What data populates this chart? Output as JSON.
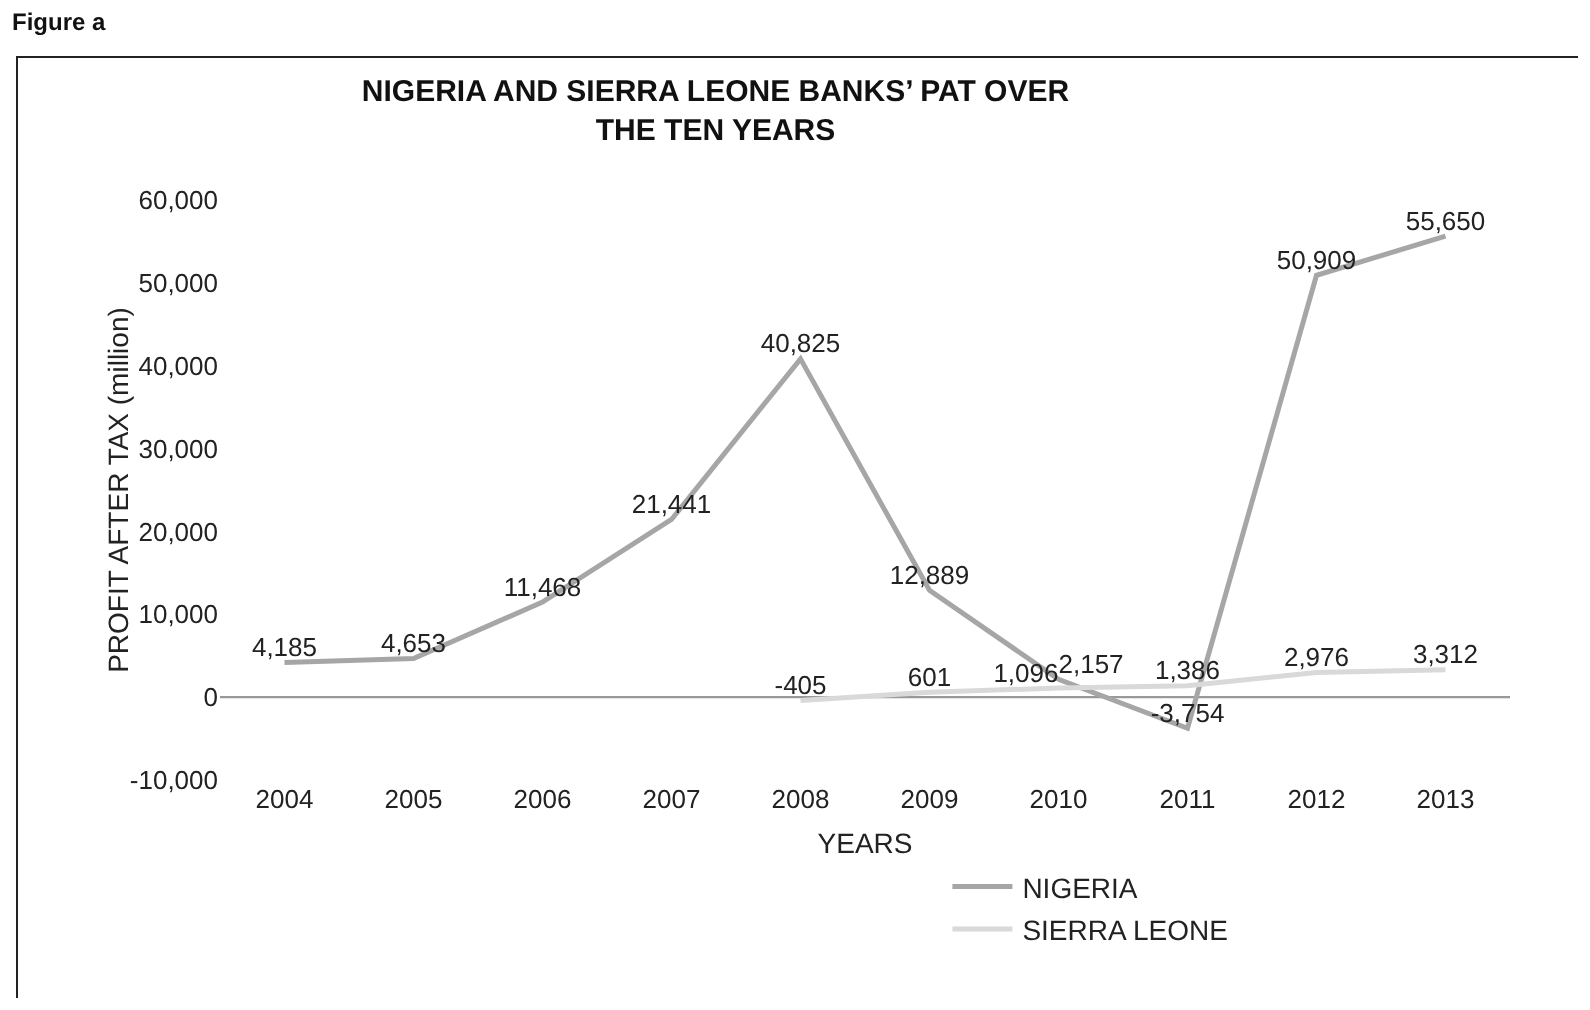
{
  "chart_data": {
    "type": "line",
    "title": "NIGERIA AND SIERRA LEONE BANKS’ PAT OVER\nTHE TEN YEARS",
    "xlabel": "YEARS",
    "ylabel": "PROFIT AFTER TAX (million)",
    "annotations": [
      "Figure a"
    ],
    "categories": [
      "2004",
      "2005",
      "2006",
      "2007",
      "2008",
      "2009",
      "2010",
      "2011",
      "2012",
      "2013"
    ],
    "series": [
      {
        "name": "NIGERIA",
        "color": "#a6a6a6",
        "values": [
          4185,
          4653,
          11468,
          21441,
          40825,
          12889,
          2157,
          -3754,
          50909,
          55650
        ],
        "value_labels": [
          "4,185",
          "4,653",
          "11,468",
          "21,441",
          "40,825",
          "12,889",
          "2,157",
          "-3,754",
          "50,909",
          "55,650"
        ]
      },
      {
        "name": "SIERRA LEONE",
        "color": "#d9d9d9",
        "values": [
          null,
          null,
          null,
          null,
          -405,
          601,
          1096,
          1386,
          2976,
          3312
        ],
        "value_labels": [
          null,
          null,
          null,
          null,
          "-405",
          "601",
          "1,096",
          "1,386",
          "2,976",
          "3,312"
        ]
      }
    ],
    "ylim": [
      -10000,
      60000
    ],
    "yticks": [
      {
        "value": -10000,
        "label": "-10,000"
      },
      0,
      {
        "value": 10000,
        "label": "10,000"
      },
      {
        "value": 20000,
        "label": "20,000"
      },
      {
        "value": 30000,
        "label": "30,000"
      },
      {
        "value": 40000,
        "label": "40,000"
      },
      {
        "value": 50000,
        "label": "50,000"
      },
      {
        "value": 60000,
        "label": "60,000"
      }
    ],
    "ref_lines": [
      {
        "axis": "y",
        "value": 0,
        "color": "#999999"
      }
    ],
    "legend": "bottom",
    "marker": "none",
    "line_style": "solid"
  }
}
